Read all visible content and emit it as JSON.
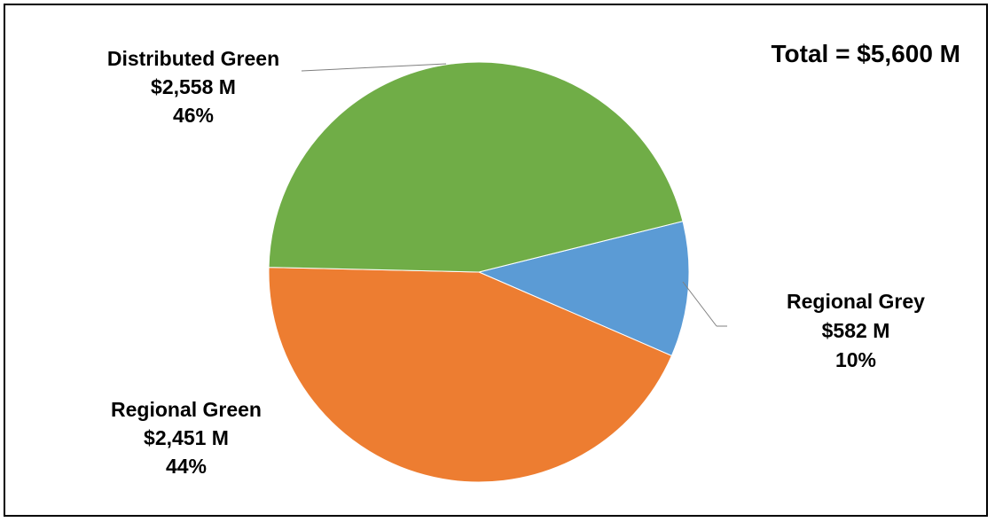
{
  "chart_data": {
    "type": "pie",
    "total_label": "Total = $5,600 M",
    "slices": [
      {
        "name": "Regional Grey",
        "amount": 582,
        "amount_label": "$582 M",
        "percent_label": "10%",
        "color": "#5B9BD5"
      },
      {
        "name": "Regional Green",
        "amount": 2451,
        "amount_label": "$2,451 M",
        "percent_label": "44%",
        "color": "#ED7D31"
      },
      {
        "name": "Distributed Green",
        "amount": 2558,
        "amount_label": "$2,558 M",
        "percent_label": "46%",
        "color": "#70AD47"
      }
    ]
  }
}
